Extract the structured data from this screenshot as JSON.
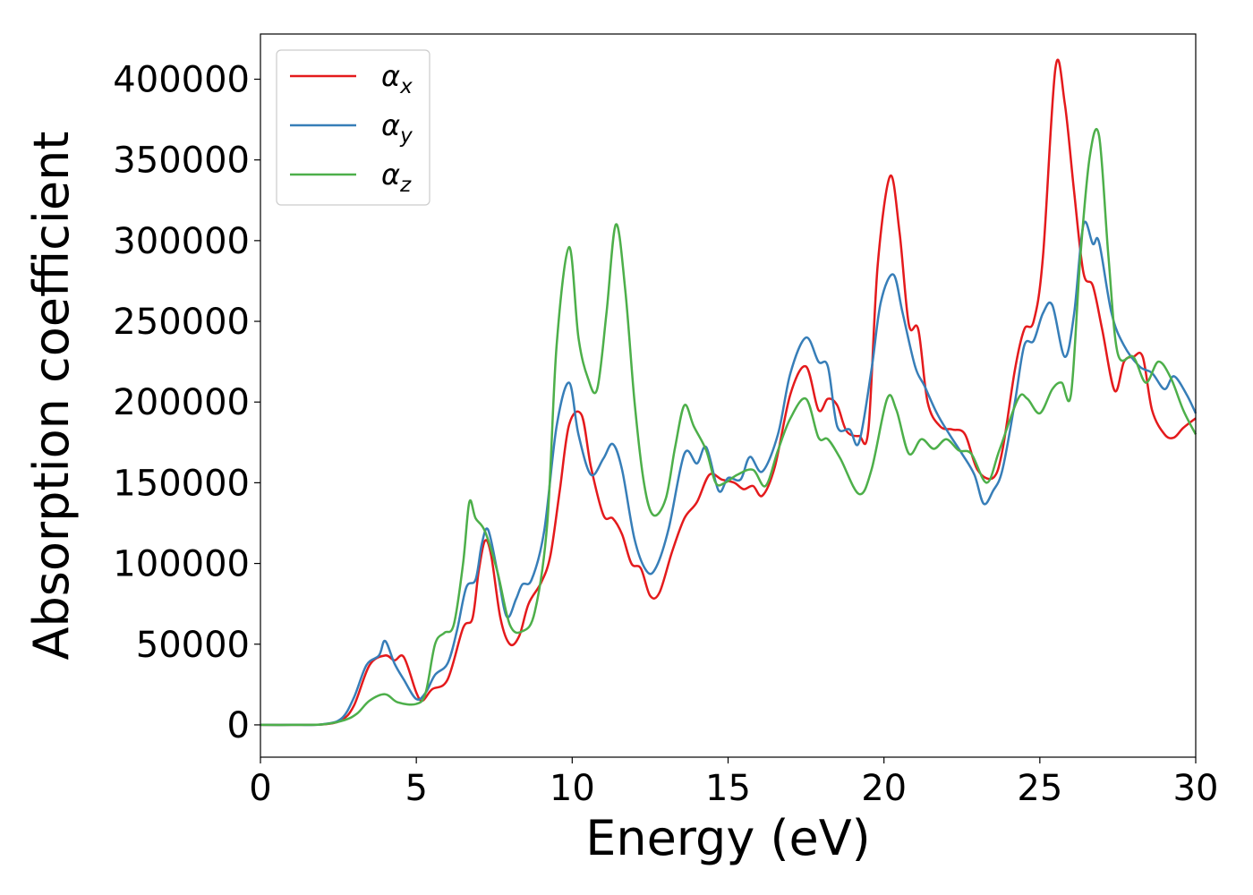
{
  "chart_data": {
    "type": "line",
    "xlabel": "Energy (eV)",
    "ylabel": "Absorption coefficient",
    "xlim": [
      0,
      30
    ],
    "ylim": [
      -20000,
      428000
    ],
    "xticks": [
      0,
      5,
      10,
      15,
      20,
      25,
      30
    ],
    "yticks": [
      0,
      50000,
      100000,
      150000,
      200000,
      250000,
      300000,
      350000,
      400000
    ],
    "grid": false,
    "legend_position": "top-left",
    "series": [
      {
        "name": "α",
        "subscript": "x",
        "color": "#e41a1c",
        "points": [
          [
            0,
            0
          ],
          [
            1,
            0
          ],
          [
            2,
            300
          ],
          [
            2.6,
            3000
          ],
          [
            3,
            12000
          ],
          [
            3.5,
            37000
          ],
          [
            4,
            43000
          ],
          [
            4.3,
            40000
          ],
          [
            4.6,
            42000
          ],
          [
            5,
            20000
          ],
          [
            5.2,
            15000
          ],
          [
            5.5,
            22000
          ],
          [
            6,
            28000
          ],
          [
            6.5,
            60000
          ],
          [
            6.8,
            66000
          ],
          [
            7,
            95000
          ],
          [
            7.2,
            114000
          ],
          [
            7.4,
            105000
          ],
          [
            7.7,
            66000
          ],
          [
            8,
            50000
          ],
          [
            8.3,
            55000
          ],
          [
            8.6,
            75000
          ],
          [
            9,
            88000
          ],
          [
            9.3,
            105000
          ],
          [
            9.6,
            145000
          ],
          [
            9.9,
            186000
          ],
          [
            10.3,
            192000
          ],
          [
            10.6,
            160000
          ],
          [
            11,
            130000
          ],
          [
            11.3,
            128000
          ],
          [
            11.6,
            118000
          ],
          [
            11.9,
            100000
          ],
          [
            12.2,
            97000
          ],
          [
            12.5,
            80000
          ],
          [
            12.8,
            82000
          ],
          [
            13.2,
            107000
          ],
          [
            13.6,
            128000
          ],
          [
            14,
            138000
          ],
          [
            14.4,
            155000
          ],
          [
            14.8,
            152000
          ],
          [
            15.2,
            150000
          ],
          [
            15.5,
            146000
          ],
          [
            15.8,
            148000
          ],
          [
            16.1,
            142000
          ],
          [
            16.5,
            160000
          ],
          [
            17,
            205000
          ],
          [
            17.5,
            222000
          ],
          [
            17.9,
            195000
          ],
          [
            18.2,
            202000
          ],
          [
            18.5,
            198000
          ],
          [
            18.8,
            182000
          ],
          [
            19.2,
            179000
          ],
          [
            19.5,
            183000
          ],
          [
            19.8,
            285000
          ],
          [
            20.2,
            340000
          ],
          [
            20.5,
            305000
          ],
          [
            20.8,
            248000
          ],
          [
            21.1,
            245000
          ],
          [
            21.4,
            200000
          ],
          [
            21.8,
            185000
          ],
          [
            22.2,
            183000
          ],
          [
            22.6,
            180000
          ],
          [
            23,
            158000
          ],
          [
            23.5,
            153000
          ],
          [
            23.8,
            170000
          ],
          [
            24.2,
            220000
          ],
          [
            24.5,
            245000
          ],
          [
            24.8,
            250000
          ],
          [
            25.1,
            290000
          ],
          [
            25.5,
            407000
          ],
          [
            25.8,
            385000
          ],
          [
            26.1,
            330000
          ],
          [
            26.4,
            280000
          ],
          [
            26.7,
            272000
          ],
          [
            27,
            245000
          ],
          [
            27.4,
            207000
          ],
          [
            27.7,
            225000
          ],
          [
            28,
            228000
          ],
          [
            28.3,
            228000
          ],
          [
            28.6,
            195000
          ],
          [
            29,
            180000
          ],
          [
            29.3,
            178000
          ],
          [
            29.6,
            184000
          ],
          [
            30,
            190000
          ]
        ]
      },
      {
        "name": "α",
        "subscript": "y",
        "color": "#377eb8",
        "points": [
          [
            0,
            0
          ],
          [
            1,
            0
          ],
          [
            2,
            400
          ],
          [
            2.6,
            4000
          ],
          [
            3,
            17000
          ],
          [
            3.4,
            37000
          ],
          [
            3.8,
            43000
          ],
          [
            4,
            52000
          ],
          [
            4.3,
            38000
          ],
          [
            4.6,
            28000
          ],
          [
            5,
            16000
          ],
          [
            5.3,
            20000
          ],
          [
            5.6,
            31000
          ],
          [
            6,
            38000
          ],
          [
            6.3,
            58000
          ],
          [
            6.6,
            85000
          ],
          [
            6.9,
            90000
          ],
          [
            7.1,
            112000
          ],
          [
            7.3,
            121000
          ],
          [
            7.6,
            95000
          ],
          [
            7.9,
            67000
          ],
          [
            8.2,
            78000
          ],
          [
            8.4,
            87000
          ],
          [
            8.7,
            90000
          ],
          [
            9.1,
            120000
          ],
          [
            9.5,
            185000
          ],
          [
            9.9,
            212000
          ],
          [
            10.2,
            180000
          ],
          [
            10.6,
            155000
          ],
          [
            11,
            165000
          ],
          [
            11.3,
            174000
          ],
          [
            11.6,
            158000
          ],
          [
            12,
            115000
          ],
          [
            12.4,
            95000
          ],
          [
            12.7,
            98000
          ],
          [
            13.1,
            122000
          ],
          [
            13.6,
            168000
          ],
          [
            14,
            162000
          ],
          [
            14.3,
            172000
          ],
          [
            14.7,
            145000
          ],
          [
            15,
            153000
          ],
          [
            15.4,
            152000
          ],
          [
            15.7,
            166000
          ],
          [
            16.1,
            157000
          ],
          [
            16.6,
            180000
          ],
          [
            17,
            218000
          ],
          [
            17.5,
            240000
          ],
          [
            17.9,
            225000
          ],
          [
            18.2,
            222000
          ],
          [
            18.5,
            185000
          ],
          [
            18.9,
            183000
          ],
          [
            19.2,
            175000
          ],
          [
            19.6,
            220000
          ],
          [
            19.9,
            262000
          ],
          [
            20.3,
            279000
          ],
          [
            20.6,
            255000
          ],
          [
            21,
            222000
          ],
          [
            21.3,
            210000
          ],
          [
            21.7,
            193000
          ],
          [
            22.1,
            180000
          ],
          [
            22.5,
            168000
          ],
          [
            22.9,
            155000
          ],
          [
            23.2,
            137000
          ],
          [
            23.5,
            145000
          ],
          [
            23.8,
            158000
          ],
          [
            24.2,
            200000
          ],
          [
            24.5,
            235000
          ],
          [
            24.8,
            238000
          ],
          [
            25.1,
            255000
          ],
          [
            25.4,
            260000
          ],
          [
            25.8,
            228000
          ],
          [
            26.1,
            255000
          ],
          [
            26.4,
            310000
          ],
          [
            26.7,
            298000
          ],
          [
            26.9,
            299000
          ],
          [
            27.3,
            255000
          ],
          [
            27.7,
            235000
          ],
          [
            28.2,
            222000
          ],
          [
            28.6,
            218000
          ],
          [
            29,
            208000
          ],
          [
            29.3,
            216000
          ],
          [
            29.7,
            205000
          ],
          [
            30,
            193000
          ]
        ]
      },
      {
        "name": "α",
        "subscript": "z",
        "color": "#4daf4a",
        "points": [
          [
            0,
            0
          ],
          [
            1,
            0
          ],
          [
            2,
            300
          ],
          [
            2.7,
            3000
          ],
          [
            3.1,
            7000
          ],
          [
            3.5,
            15000
          ],
          [
            4,
            19000
          ],
          [
            4.4,
            14000
          ],
          [
            5,
            13000
          ],
          [
            5.3,
            20000
          ],
          [
            5.6,
            50000
          ],
          [
            5.9,
            57000
          ],
          [
            6.2,
            62000
          ],
          [
            6.5,
            100000
          ],
          [
            6.7,
            138000
          ],
          [
            6.9,
            128000
          ],
          [
            7.2,
            120000
          ],
          [
            7.6,
            95000
          ],
          [
            8,
            62000
          ],
          [
            8.4,
            58000
          ],
          [
            8.8,
            70000
          ],
          [
            9.2,
            125000
          ],
          [
            9.5,
            235000
          ],
          [
            9.9,
            296000
          ],
          [
            10.2,
            240000
          ],
          [
            10.5,
            215000
          ],
          [
            10.8,
            208000
          ],
          [
            11.1,
            255000
          ],
          [
            11.4,
            310000
          ],
          [
            11.7,
            270000
          ],
          [
            12,
            200000
          ],
          [
            12.3,
            150000
          ],
          [
            12.6,
            130000
          ],
          [
            13,
            140000
          ],
          [
            13.3,
            172000
          ],
          [
            13.6,
            198000
          ],
          [
            13.9,
            185000
          ],
          [
            14.3,
            170000
          ],
          [
            14.6,
            150000
          ],
          [
            14.9,
            150000
          ],
          [
            15.3,
            155000
          ],
          [
            15.8,
            158000
          ],
          [
            16.2,
            148000
          ],
          [
            16.6,
            170000
          ],
          [
            17,
            190000
          ],
          [
            17.5,
            202000
          ],
          [
            17.9,
            178000
          ],
          [
            18.2,
            177000
          ],
          [
            18.6,
            165000
          ],
          [
            19.2,
            143000
          ],
          [
            19.6,
            158000
          ],
          [
            20.1,
            202000
          ],
          [
            20.4,
            195000
          ],
          [
            20.8,
            168000
          ],
          [
            21.2,
            177000
          ],
          [
            21.6,
            171000
          ],
          [
            22,
            177000
          ],
          [
            22.4,
            170000
          ],
          [
            22.8,
            168000
          ],
          [
            23.3,
            150000
          ],
          [
            23.7,
            170000
          ],
          [
            24.3,
            202000
          ],
          [
            24.6,
            202000
          ],
          [
            25,
            193000
          ],
          [
            25.4,
            208000
          ],
          [
            25.7,
            212000
          ],
          [
            26,
            205000
          ],
          [
            26.3,
            290000
          ],
          [
            26.6,
            352000
          ],
          [
            26.9,
            365000
          ],
          [
            27.2,
            290000
          ],
          [
            27.5,
            230000
          ],
          [
            28,
            228000
          ],
          [
            28.4,
            212000
          ],
          [
            28.8,
            225000
          ],
          [
            29.2,
            215000
          ],
          [
            29.6,
            195000
          ],
          [
            30,
            180000
          ]
        ]
      }
    ]
  }
}
